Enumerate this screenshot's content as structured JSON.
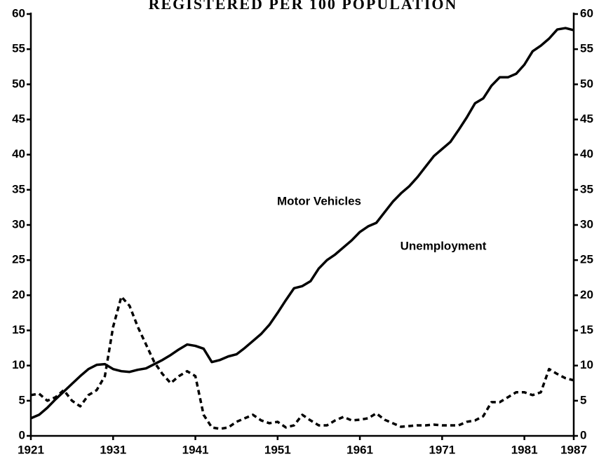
{
  "chart_data": {
    "type": "line",
    "title": "REGISTERED PER 100 POPULATION",
    "x": [
      1921,
      1922,
      1923,
      1924,
      1925,
      1926,
      1927,
      1928,
      1929,
      1930,
      1931,
      1932,
      1933,
      1934,
      1935,
      1936,
      1937,
      1938,
      1939,
      1940,
      1941,
      1942,
      1943,
      1944,
      1945,
      1946,
      1947,
      1948,
      1949,
      1950,
      1951,
      1952,
      1953,
      1954,
      1955,
      1956,
      1957,
      1958,
      1959,
      1960,
      1961,
      1962,
      1963,
      1964,
      1965,
      1966,
      1967,
      1968,
      1969,
      1970,
      1971,
      1972,
      1973,
      1974,
      1975,
      1976,
      1977,
      1978,
      1979,
      1980,
      1981,
      1982,
      1983,
      1984,
      1985,
      1986,
      1987
    ],
    "series": [
      {
        "name": "Motor Vehicles",
        "color": "#000000",
        "style": "solid",
        "values": [
          2.5,
          3,
          4,
          5.2,
          6.3,
          7.4,
          8.5,
          9.5,
          10.1,
          10.2,
          9.5,
          9.2,
          9.1,
          9.4,
          9.6,
          10.2,
          10.8,
          11.5,
          12.3,
          13,
          12.8,
          12.4,
          10.5,
          10.8,
          11.3,
          11.6,
          12.5,
          13.5,
          14.5,
          15.8,
          17.5,
          19.3,
          21,
          21.3,
          22,
          23.8,
          25,
          25.8,
          26.8,
          27.8,
          29,
          29.8,
          30.3,
          31.8,
          33.3,
          34.5,
          35.5,
          36.8,
          38.3,
          39.8,
          40.8,
          41.8,
          43.5,
          45.3,
          47.3,
          48,
          49.8,
          51,
          51,
          51.5,
          52.8,
          54.7,
          55.5,
          56.5,
          57.8,
          58,
          57.7
        ]
      },
      {
        "name": "Unemployment",
        "color": "#000000",
        "style": "dashed",
        "values": [
          5.8,
          6,
          5,
          5.5,
          6.5,
          5,
          4.2,
          5.8,
          6.5,
          8.5,
          15.5,
          19.8,
          18.5,
          15.5,
          13,
          10.5,
          8.8,
          7.5,
          8.5,
          9.2,
          8.5,
          3,
          1.2,
          1,
          1.2,
          2,
          2.5,
          3,
          2.2,
          1.8,
          2,
          1.2,
          1.5,
          3,
          2.2,
          1.5,
          1.5,
          2.2,
          2.7,
          2.2,
          2.3,
          2.5,
          3.2,
          2.3,
          1.8,
          1.3,
          1.4,
          1.5,
          1.5,
          1.6,
          1.5,
          1.5,
          1.5,
          2,
          2.2,
          2.8,
          4.8,
          4.8,
          5.5,
          6.2,
          6.2,
          5.8,
          6.2,
          9.5,
          8.8,
          8.2,
          7.9
        ]
      }
    ],
    "xlim": [
      1921,
      1987
    ],
    "xticks": [
      1921,
      1931,
      1941,
      1951,
      1961,
      1971,
      1981,
      1987
    ],
    "ylim": [
      0,
      60
    ],
    "yticks": [
      0,
      5,
      10,
      15,
      20,
      25,
      30,
      35,
      40,
      45,
      50,
      55,
      60
    ],
    "y2lim": [
      0,
      60
    ],
    "y2ticks": [
      0,
      5,
      10,
      15,
      20,
      25,
      30,
      35,
      40,
      45,
      50,
      55,
      60
    ]
  }
}
